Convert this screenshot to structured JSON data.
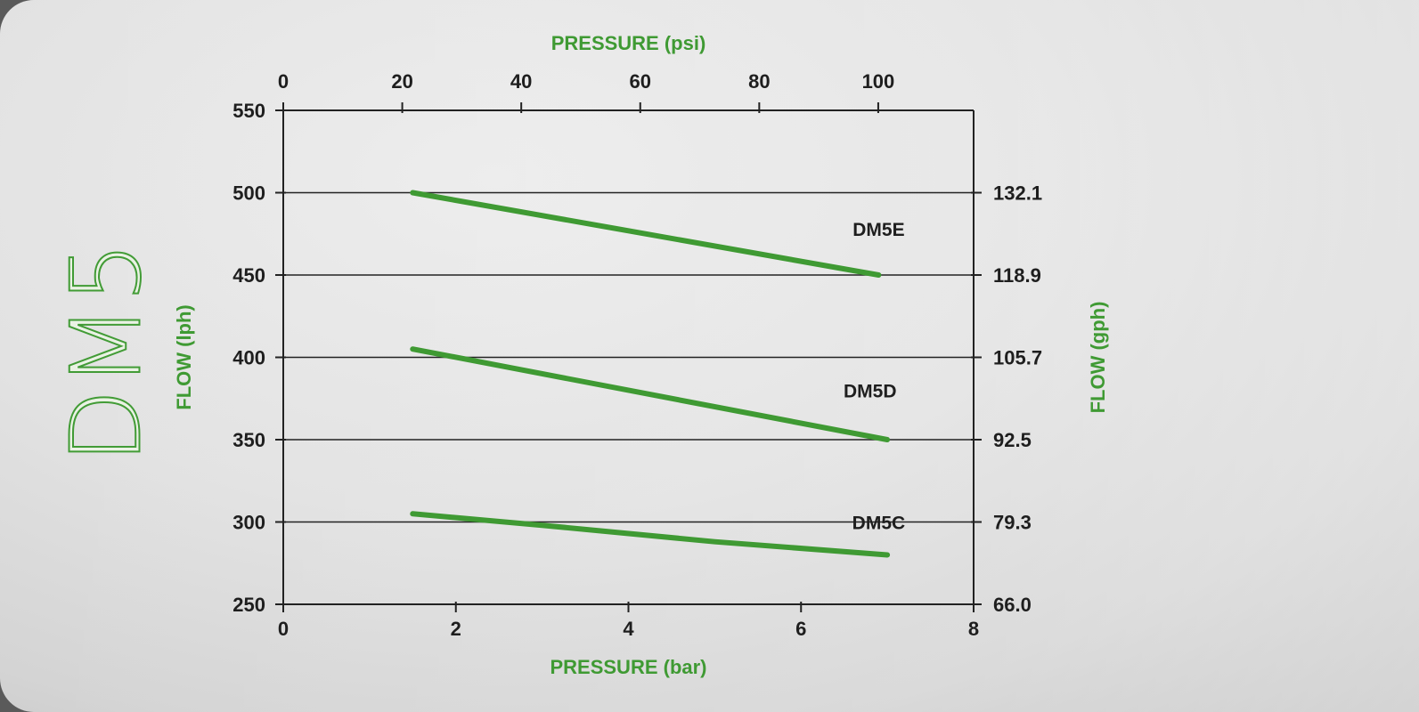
{
  "heading": "DM5",
  "colors": {
    "series": "#3f9a33",
    "axis": "#222222",
    "label": "#1e1e1e",
    "title_green": "#3f9a33"
  },
  "chart_data": {
    "type": "line",
    "xlabel": "PRESSURE (bar)",
    "xlabel_top": "PRESSURE (psi)",
    "ylabel": "FLOW (lph)",
    "ylabel_right": "FLOW (gph)",
    "xlim": [
      0,
      8
    ],
    "ylim": [
      250,
      550
    ],
    "x_ticks": [
      "0",
      "2",
      "4",
      "6",
      "8"
    ],
    "x_ticks_top": [
      {
        "value": 0,
        "label": "0"
      },
      {
        "value": 20,
        "label": "20"
      },
      {
        "value": 40,
        "label": "40"
      },
      {
        "value": 60,
        "label": "60"
      },
      {
        "value": 80,
        "label": "80"
      },
      {
        "value": 100,
        "label": "100"
      }
    ],
    "psi_per_bar": 14.5038,
    "y_ticks": [
      "250",
      "300",
      "350",
      "400",
      "450",
      "500",
      "550"
    ],
    "y_ticks_right": [
      {
        "value": 250,
        "label": "66.0"
      },
      {
        "value": 300,
        "label": "79.3"
      },
      {
        "value": 350,
        "label": "92.5"
      },
      {
        "value": 400,
        "label": "105.7"
      },
      {
        "value": 450,
        "label": "118.9"
      },
      {
        "value": 500,
        "label": "132.1"
      }
    ],
    "gridlines_y": [
      300,
      350,
      400,
      450,
      500
    ],
    "series": [
      {
        "name": "DM5E",
        "x": [
          1.5,
          6.9
        ],
        "y": [
          500,
          450
        ],
        "label_at": [
          6.9,
          478
        ]
      },
      {
        "name": "DM5D",
        "x": [
          1.5,
          7.0
        ],
        "y": [
          405,
          350
        ],
        "label_at": [
          6.8,
          380
        ]
      },
      {
        "name": "DM5C",
        "x": [
          1.5,
          3.0,
          5.0,
          7.0
        ],
        "y": [
          305,
          298,
          288,
          280
        ],
        "label_at": [
          6.9,
          300
        ]
      }
    ]
  }
}
